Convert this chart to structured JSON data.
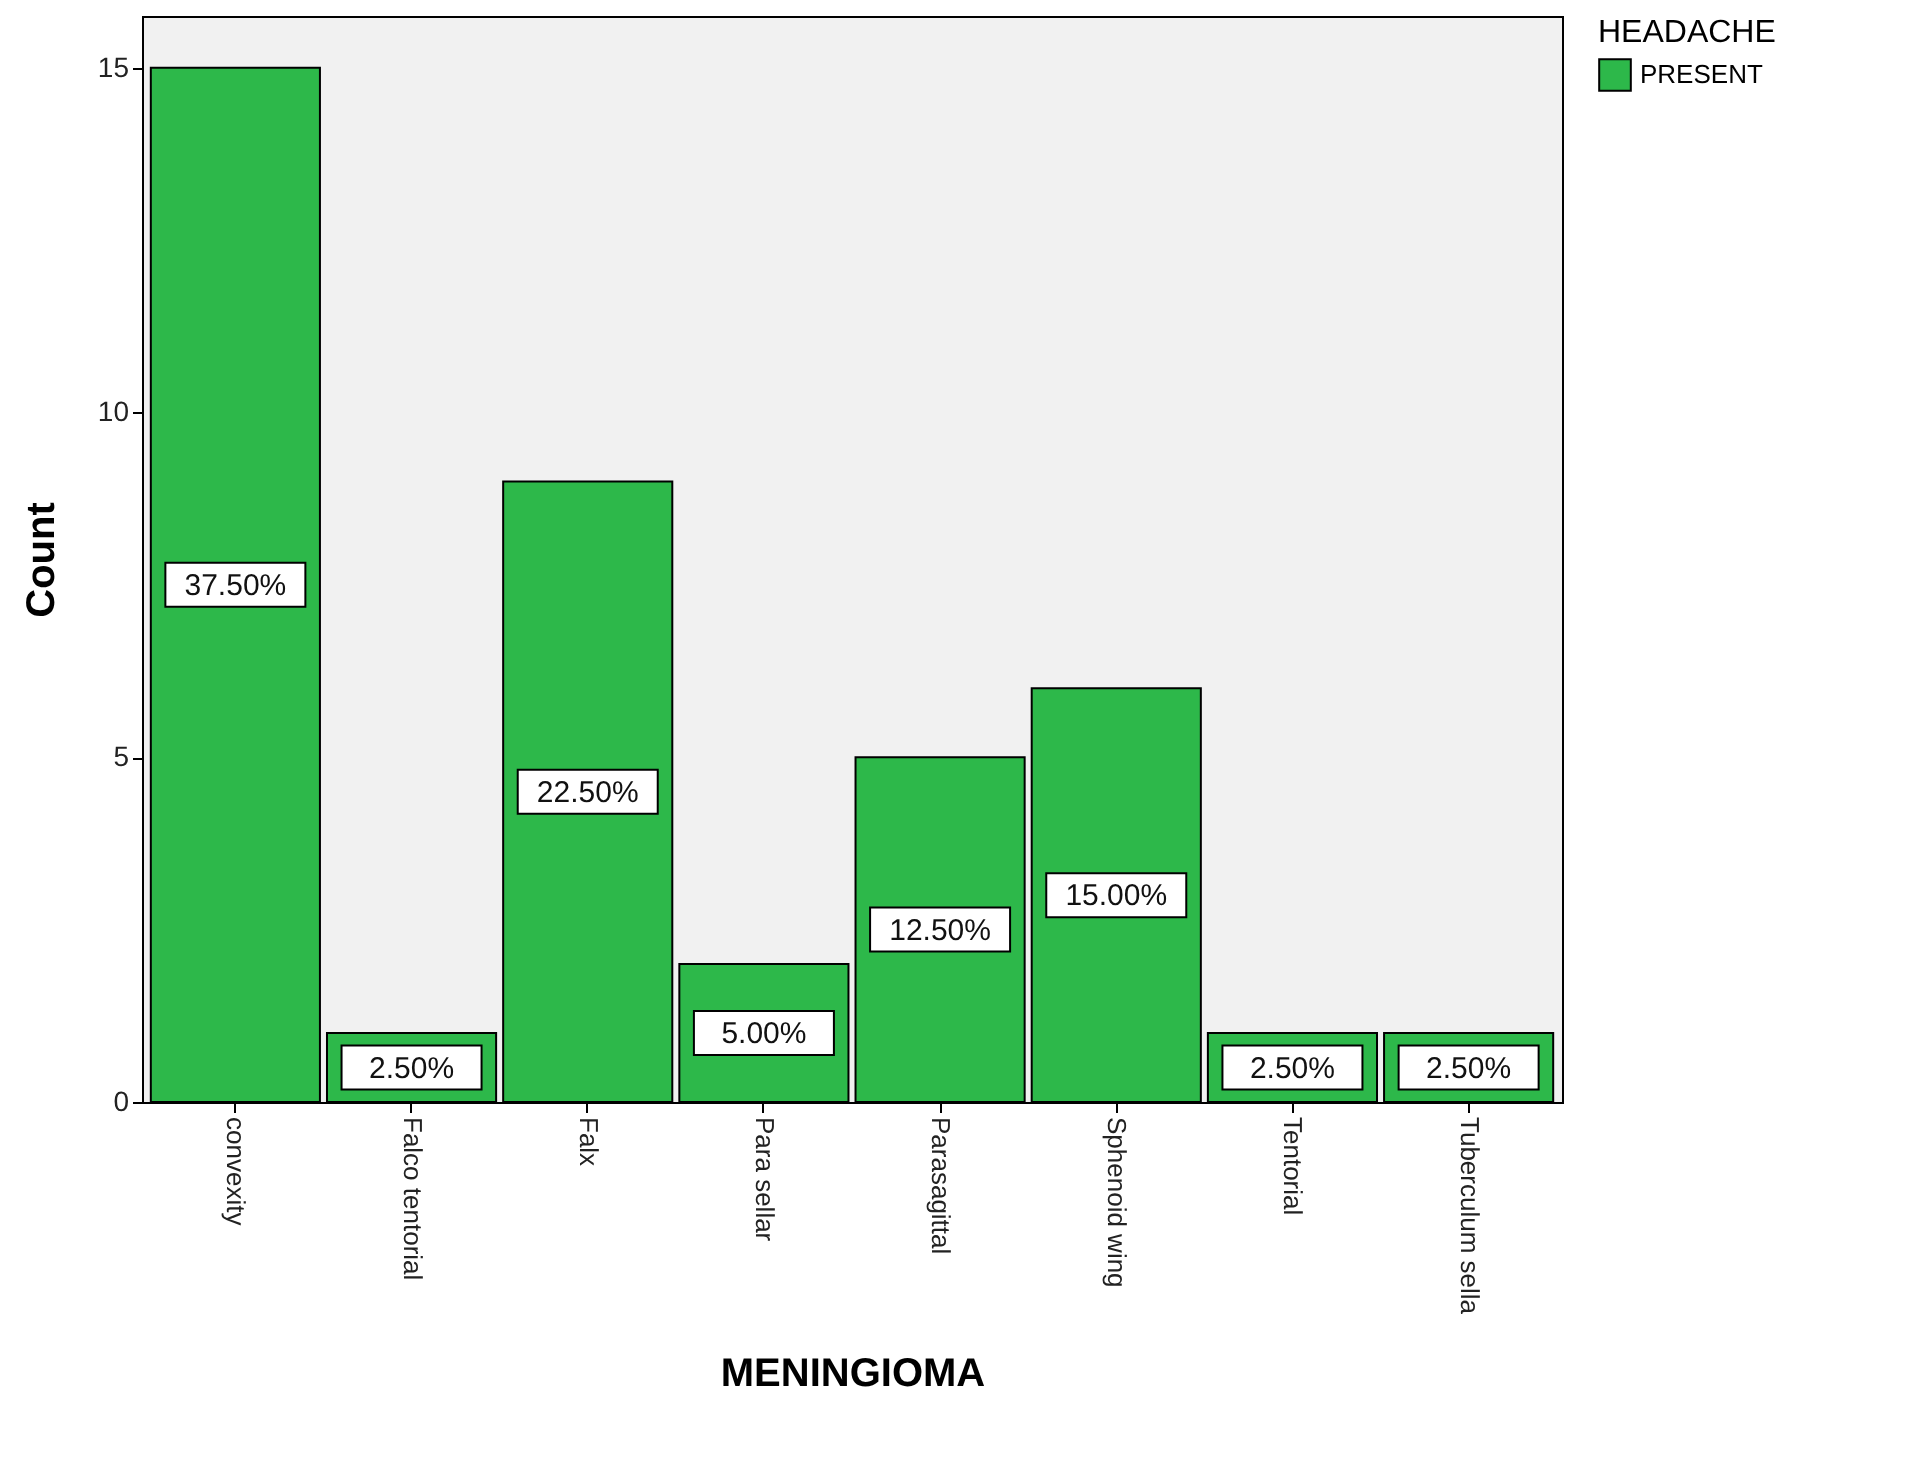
{
  "chart_data": {
    "type": "bar",
    "xlabel": "MENINGIOMA",
    "ylabel": "Count",
    "legend_title": "HEADACHE",
    "categories": [
      "convexity",
      "Falco tentorial",
      "Falx",
      "Para sellar",
      "Parasagittal",
      "Sphenoid wing",
      "Tentorial",
      "Tuberculum sella"
    ],
    "series": [
      {
        "name": "PRESENT",
        "color": "#2db84a",
        "values": [
          15,
          1,
          9,
          2,
          5,
          6,
          1,
          1
        ]
      }
    ],
    "annotations": [
      "37.50%",
      "2.50%",
      "22.50%",
      "5.00%",
      "12.50%",
      "15.00%",
      "2.50%",
      "2.50%"
    ],
    "ylim": [
      0,
      15.75
    ],
    "yticks": [
      0,
      5,
      10,
      15
    ],
    "legend": "top right"
  }
}
